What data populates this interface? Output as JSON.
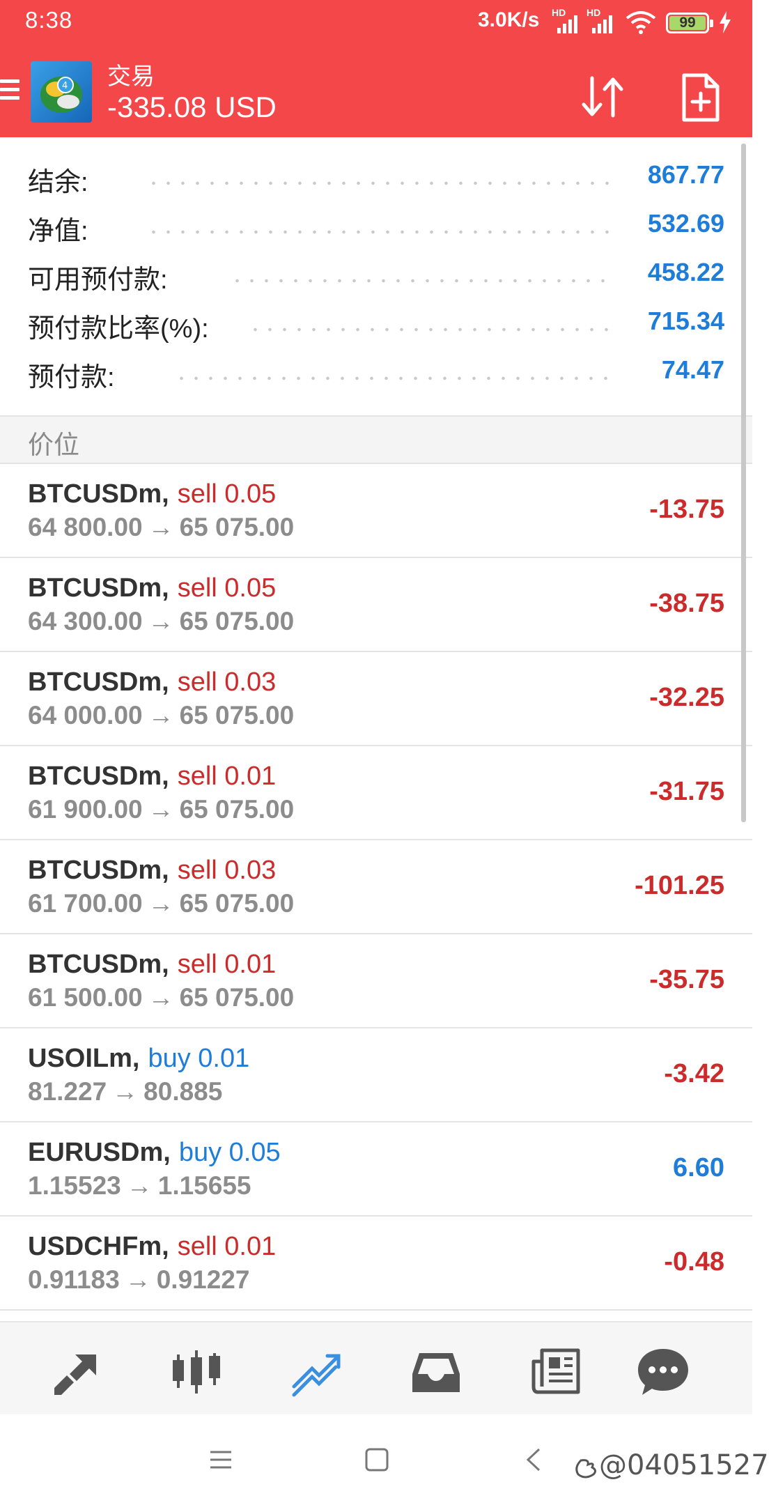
{
  "status_bar": {
    "time": "8:38",
    "net_speed": "3.0K/s",
    "signal_tag": "HD",
    "battery": "99"
  },
  "header": {
    "title": "交易",
    "balance": "-335.08 USD",
    "icons": [
      "menu-icon",
      "app-logo",
      "sort-icon",
      "new-order-icon"
    ]
  },
  "summary": [
    {
      "label": "结余:",
      "value": "867.77"
    },
    {
      "label": "净值:",
      "value": "532.69"
    },
    {
      "label": "可用预付款:",
      "value": "458.22"
    },
    {
      "label": "预付款比率(%):",
      "value": "715.34"
    },
    {
      "label": "预付款:",
      "value": "74.47"
    }
  ],
  "section_title": "价位",
  "positions": [
    {
      "symbol": "BTCUSDm",
      "side": "sell 0.05",
      "open": "64 800.00",
      "current": "65 075.00",
      "pnl": "-13.75"
    },
    {
      "symbol": "BTCUSDm",
      "side": "sell 0.05",
      "open": "64 300.00",
      "current": "65 075.00",
      "pnl": "-38.75"
    },
    {
      "symbol": "BTCUSDm",
      "side": "sell 0.03",
      "open": "64 000.00",
      "current": "65 075.00",
      "pnl": "-32.25"
    },
    {
      "symbol": "BTCUSDm",
      "side": "sell 0.01",
      "open": "61 900.00",
      "current": "65 075.00",
      "pnl": "-31.75"
    },
    {
      "symbol": "BTCUSDm",
      "side": "sell 0.03",
      "open": "61 700.00",
      "current": "65 075.00",
      "pnl": "-101.25"
    },
    {
      "symbol": "BTCUSDm",
      "side": "sell 0.01",
      "open": "61 500.00",
      "current": "65 075.00",
      "pnl": "-35.75"
    },
    {
      "symbol": "USOILm",
      "side": "buy 0.01",
      "open": "81.227",
      "current": "80.885",
      "pnl": "-3.42"
    },
    {
      "symbol": "EURUSDm",
      "side": "buy 0.05",
      "open": "1.15523",
      "current": "1.15655",
      "pnl": "6.60"
    },
    {
      "symbol": "USDCHFm",
      "side": "sell 0.01",
      "open": "0.91183",
      "current": "0.91227",
      "pnl": "-0.48"
    }
  ],
  "arrow_glyph": "→",
  "comma": ",",
  "bottom_nav": [
    "quotes-icon",
    "chart-icon",
    "trade-icon",
    "history-icon",
    "news-icon",
    "chat-icon"
  ],
  "colors": {
    "header": "#f34749",
    "loss": "#cc2b2b",
    "profit": "#1e7dd8",
    "active_nav": "#3b8fe0"
  },
  "watermark": "@04051527"
}
